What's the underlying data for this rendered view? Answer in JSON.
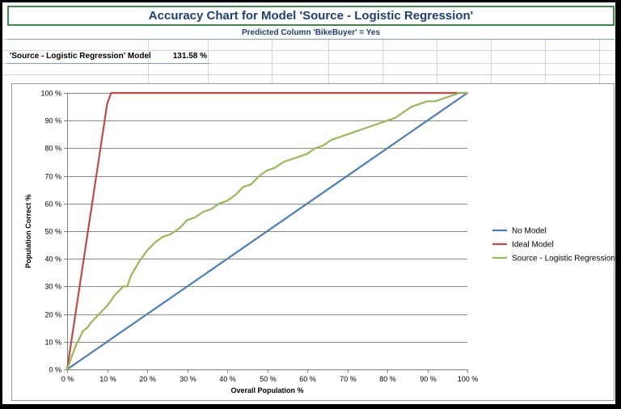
{
  "header": {
    "title": "Accuracy Chart for Model 'Source - Logistic Regression'",
    "subtitle": "Predicted Column 'BikeBuyer' = Yes"
  },
  "summary": {
    "model_label": "'Source - Logistic Regression' Model",
    "model_value": "131.58 %"
  },
  "colors": {
    "no_model": "#4a7ebb",
    "ideal_model": "#be4b48",
    "logistic": "#98b954",
    "gridline": "#8c8c8c",
    "title_border": "#3e8a4a",
    "title_text": "#1f3f75"
  },
  "chart_data": {
    "type": "line",
    "xlabel": "Overall Population %",
    "ylabel": "Population Correct %",
    "xlim": [
      0,
      100
    ],
    "ylim": [
      0,
      100
    ],
    "x_ticks": [
      "0 %",
      "10 %",
      "20 %",
      "30 %",
      "40 %",
      "50 %",
      "60 %",
      "70 %",
      "80 %",
      "90 %",
      "100 %"
    ],
    "y_ticks": [
      "0 %",
      "10 %",
      "20 %",
      "30 %",
      "40 %",
      "50 %",
      "60 %",
      "70 %",
      "80 %",
      "90 %",
      "100 %"
    ],
    "grid": "horizontal",
    "legend_position": "right",
    "series": [
      {
        "name": "No Model",
        "color": "#4a7ebb",
        "x": [
          0,
          100
        ],
        "y": [
          0,
          100
        ]
      },
      {
        "name": "Ideal Model",
        "color": "#be4b48",
        "x": [
          0,
          10,
          11,
          100
        ],
        "y": [
          0,
          96,
          100,
          100
        ]
      },
      {
        "name": "Source - Logistic Regression",
        "color": "#98b954",
        "x": [
          0,
          2,
          4,
          5,
          6,
          8,
          10,
          12,
          14,
          15,
          16,
          18,
          20,
          22,
          24,
          26,
          28,
          30,
          32,
          34,
          36,
          38,
          40,
          42,
          44,
          46,
          48,
          50,
          52,
          54,
          56,
          58,
          60,
          62,
          64,
          66,
          68,
          70,
          72,
          74,
          76,
          78,
          80,
          82,
          84,
          86,
          88,
          90,
          92,
          94,
          96,
          98,
          100
        ],
        "y": [
          0,
          8,
          14,
          15,
          17,
          20,
          23,
          27,
          30,
          30,
          34,
          39,
          43,
          46,
          48,
          49,
          51,
          54,
          55,
          57,
          58,
          60,
          61,
          63,
          66,
          67,
          70,
          72,
          73,
          75,
          76,
          77,
          78,
          80,
          81,
          83,
          84,
          85,
          86,
          87,
          88,
          89,
          90,
          91,
          93,
          95,
          96,
          97,
          97,
          98,
          99,
          100,
          100
        ]
      }
    ]
  }
}
